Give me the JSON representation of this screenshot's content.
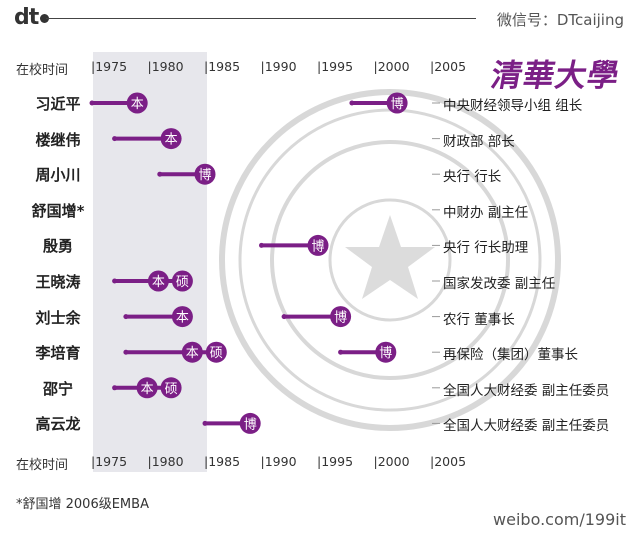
{
  "header": {
    "logo": "dt",
    "wechat": "微信号：DTcaijing"
  },
  "university_logo": "清華大學",
  "axis_title": "在校时间",
  "footnote": "*舒国增 2006级EMBA",
  "watermark": "weibo.com/199it",
  "colors": {
    "accent": "#7b1f86",
    "band": "#e7e7ec"
  },
  "chart_data": {
    "type": "timeline",
    "x_ticks": [
      "1975",
      "1980",
      "1985",
      "1990",
      "1995",
      "2000",
      "2005"
    ],
    "xlim": [
      1970.5,
      2007
    ],
    "highlight_range": [
      1975,
      1985
    ],
    "people": [
      {
        "name": "习近平",
        "role": "中央财经领导小组 组长",
        "spans": [
          {
            "start": 1975,
            "end": 1979,
            "labels": [
              "本"
            ]
          },
          {
            "start": 1998,
            "end": 2002,
            "labels": [
              "博"
            ]
          }
        ]
      },
      {
        "name": "楼继伟",
        "role": "财政部 部长",
        "spans": [
          {
            "start": 1977,
            "end": 1982,
            "labels": [
              "本"
            ]
          }
        ]
      },
      {
        "name": "周小川",
        "role": "央行 行长",
        "spans": [
          {
            "start": 1981,
            "end": 1985,
            "labels": [
              "博"
            ]
          }
        ]
      },
      {
        "name": "舒国增*",
        "role": "中财办 副主任",
        "spans": []
      },
      {
        "name": "殷勇",
        "role": "央行 行长助理",
        "spans": [
          {
            "start": 1990,
            "end": 1995,
            "labels": [
              "博"
            ]
          }
        ]
      },
      {
        "name": "王晓涛",
        "role": "国家发改委 副主任",
        "spans": [
          {
            "start": 1977,
            "end": 1983,
            "labels": [
              "本",
              "硕"
            ]
          }
        ]
      },
      {
        "name": "刘士余",
        "role": "农行 董事长",
        "spans": [
          {
            "start": 1978,
            "end": 1983,
            "labels": [
              "本"
            ]
          },
          {
            "start": 1992,
            "end": 1997,
            "labels": [
              "博"
            ]
          }
        ]
      },
      {
        "name": "李培育",
        "role": "再保险（集团）董事长",
        "spans": [
          {
            "start": 1978,
            "end": 1986,
            "labels": [
              "本",
              "硕"
            ]
          },
          {
            "start": 1997,
            "end": 2001,
            "labels": [
              "博"
            ]
          }
        ]
      },
      {
        "name": "邵宁",
        "role": "全国人大财经委 副主任委员",
        "spans": [
          {
            "start": 1977,
            "end": 1982,
            "labels": [
              "本",
              "硕"
            ]
          }
        ]
      },
      {
        "name": "高云龙",
        "role": "全国人大财经委 副主任委员",
        "spans": [
          {
            "start": 1985,
            "end": 1989,
            "labels": [
              "博"
            ]
          }
        ]
      }
    ]
  }
}
